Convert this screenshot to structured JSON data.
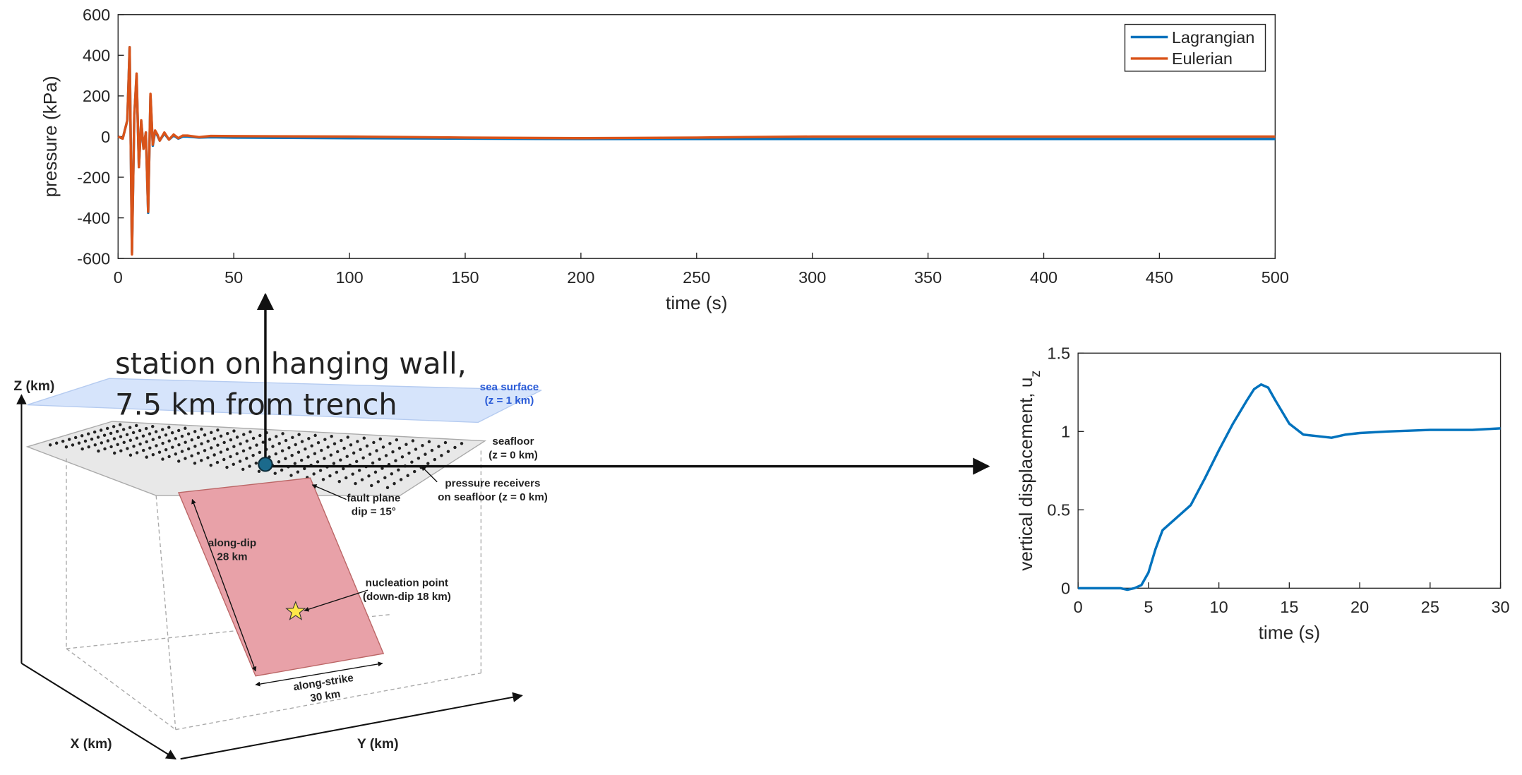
{
  "chart_data": [
    {
      "type": "line",
      "xlabel": "time (s)",
      "ylabel": "pressure (kPa)",
      "x": [
        0,
        2,
        4,
        5,
        6,
        7,
        8,
        9,
        10,
        11,
        12,
        13,
        14,
        15,
        16,
        17,
        18,
        20,
        22,
        24,
        26,
        28,
        30,
        35,
        40,
        50,
        100,
        150,
        200,
        250,
        300,
        350,
        400,
        450,
        500
      ],
      "series": [
        {
          "name": "Lagrangian",
          "color": "#0072bd",
          "values": [
            0,
            -10,
            80,
            440,
            -570,
            100,
            300,
            -150,
            75,
            -60,
            20,
            -375,
            200,
            -45,
            25,
            5,
            -20,
            15,
            -15,
            5,
            -10,
            0,
            0,
            -5,
            -3,
            -5,
            -8,
            -10,
            -12,
            -12,
            -12,
            -12,
            -12,
            -12,
            -12
          ]
        },
        {
          "name": "Eulerian",
          "color": "#d95319",
          "values": [
            0,
            -10,
            80,
            440,
            -580,
            100,
            310,
            -150,
            80,
            -60,
            20,
            -370,
            210,
            -40,
            30,
            10,
            -20,
            20,
            -15,
            10,
            -8,
            5,
            5,
            -3,
            3,
            2,
            0,
            -5,
            -8,
            -5,
            0,
            0,
            0,
            0,
            0
          ]
        }
      ],
      "xlim": [
        0,
        500
      ],
      "xticks": [
        0,
        50,
        100,
        150,
        200,
        250,
        300,
        350,
        400,
        450,
        500
      ],
      "ylim": [
        -600,
        600
      ],
      "yticks": [
        -600,
        -400,
        -200,
        0,
        200,
        400,
        600
      ],
      "legend": "upper right",
      "grid": false
    },
    {
      "type": "line",
      "xlabel": "time (s)",
      "ylabel": "vertical displacement, u",
      "ylabel_subscript": "z",
      "x": [
        0,
        1,
        2,
        3,
        3.5,
        4,
        4.5,
        5,
        5.5,
        6,
        7,
        8,
        9,
        10,
        11,
        12,
        12.5,
        13,
        13.5,
        14,
        15,
        16,
        17,
        18,
        19,
        20,
        22,
        25,
        28,
        30
      ],
      "series": [
        {
          "name": null,
          "color": "#0072bd",
          "values": [
            0,
            0,
            0,
            0,
            -0.01,
            0,
            0.02,
            0.1,
            0.25,
            0.37,
            0.45,
            0.53,
            0.7,
            0.88,
            1.05,
            1.2,
            1.27,
            1.3,
            1.28,
            1.2,
            1.05,
            0.98,
            0.97,
            0.96,
            0.98,
            0.99,
            1.0,
            1.01,
            1.01,
            1.02
          ]
        }
      ],
      "xlim": [
        0,
        30
      ],
      "xticks": [
        0,
        5,
        10,
        15,
        20,
        25,
        30
      ],
      "ylim": [
        0,
        1.5
      ],
      "yticks": [
        0,
        0.5,
        1,
        1.5
      ],
      "grid": false
    }
  ],
  "annotation": {
    "lines": [
      "station on hanging wall,",
      "7.5 km from trench"
    ]
  },
  "diagram": {
    "axes": {
      "z": "Z (km)",
      "x": "X (km)",
      "y": "Y (km)"
    },
    "sea_surface": [
      "sea surface",
      "(z = 1 km)"
    ],
    "seafloor": [
      "seafloor",
      "(z = 0 km)"
    ],
    "receivers": [
      "pressure receivers",
      "on seafloor (z = 0 km)"
    ],
    "fault": [
      "fault plane",
      "dip = 15°"
    ],
    "along_dip": [
      "along-dip",
      "28 km"
    ],
    "nucleation": [
      "nucleation point",
      "(down-dip 18 km)"
    ],
    "along_strike": [
      "along-strike",
      "30 km"
    ]
  }
}
